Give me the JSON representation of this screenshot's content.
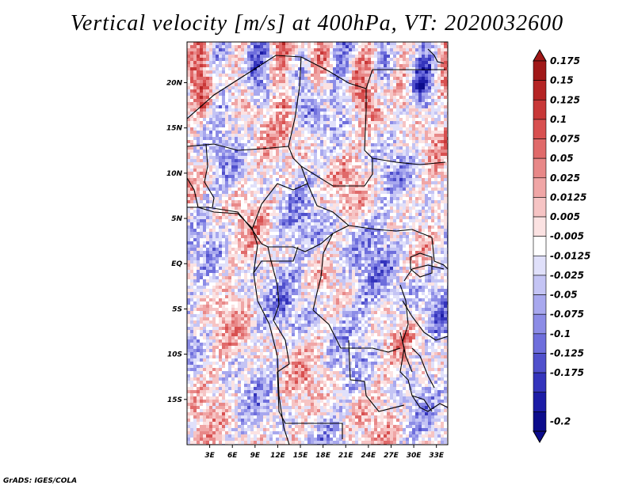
{
  "title": "Vertical velocity [m/s] at 400hPa, VT: 2020032600",
  "credit": "GrADS: IGES/COLA",
  "chart_data": {
    "type": "heatmap",
    "variable": "Vertical velocity",
    "units": "m/s",
    "level": "400hPa",
    "valid_time": "2020032600",
    "lon_range": [
      0,
      34.5
    ],
    "lat_range": [
      -20,
      24.5
    ],
    "x_ticks": [
      {
        "value": 3,
        "label": "3E"
      },
      {
        "value": 6,
        "label": "6E"
      },
      {
        "value": 9,
        "label": "9E"
      },
      {
        "value": 12,
        "label": "12E"
      },
      {
        "value": 15,
        "label": "15E"
      },
      {
        "value": 18,
        "label": "18E"
      },
      {
        "value": 21,
        "label": "21E"
      },
      {
        "value": 24,
        "label": "24E"
      },
      {
        "value": 27,
        "label": "27E"
      },
      {
        "value": 30,
        "label": "30E"
      },
      {
        "value": 33,
        "label": "33E"
      }
    ],
    "y_ticks": [
      {
        "value": 20,
        "label": "20N"
      },
      {
        "value": 15,
        "label": "15N"
      },
      {
        "value": 10,
        "label": "10N"
      },
      {
        "value": 5,
        "label": "5N"
      },
      {
        "value": 0,
        "label": "EQ"
      },
      {
        "value": -5,
        "label": "5S"
      },
      {
        "value": -10,
        "label": "10S"
      },
      {
        "value": -15,
        "label": "15S"
      }
    ],
    "colorbar": {
      "labels": [
        "0.175",
        "0.15",
        "0.125",
        "0.1",
        "0.075",
        "0.05",
        "0.025",
        "0.0125",
        "0.005",
        "-0.005",
        "-0.0125",
        "-0.025",
        "-0.05",
        "-0.075",
        "-0.1",
        "-0.125",
        "-0.175",
        "-0.2"
      ],
      "colors": [
        "#a01818",
        "#b52424",
        "#c83838",
        "#d85050",
        "#e06a6a",
        "#e88888",
        "#f0a6a6",
        "#f6c4c4",
        "#fbe2e2",
        "#ffffff",
        "#e0e0fa",
        "#c4c4f4",
        "#a8a8ee",
        "#8c8ce6",
        "#6e6edc",
        "#5050cc",
        "#3434bc",
        "#1c1ca6",
        "#0c0c8c"
      ]
    }
  }
}
